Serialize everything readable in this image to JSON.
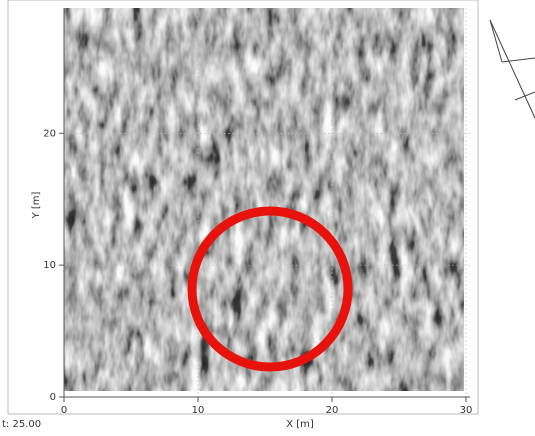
{
  "chart_data": {
    "type": "heatmap",
    "x_label": "X [m]",
    "y_label": "Y [m]",
    "annotation": "t: 25.00",
    "xlim": [
      0,
      30.3
    ],
    "ylim": [
      0,
      29.5
    ],
    "xticks": [
      0,
      10,
      20,
      30
    ],
    "yticks": [
      0,
      10,
      20
    ],
    "grid": true
  }
}
